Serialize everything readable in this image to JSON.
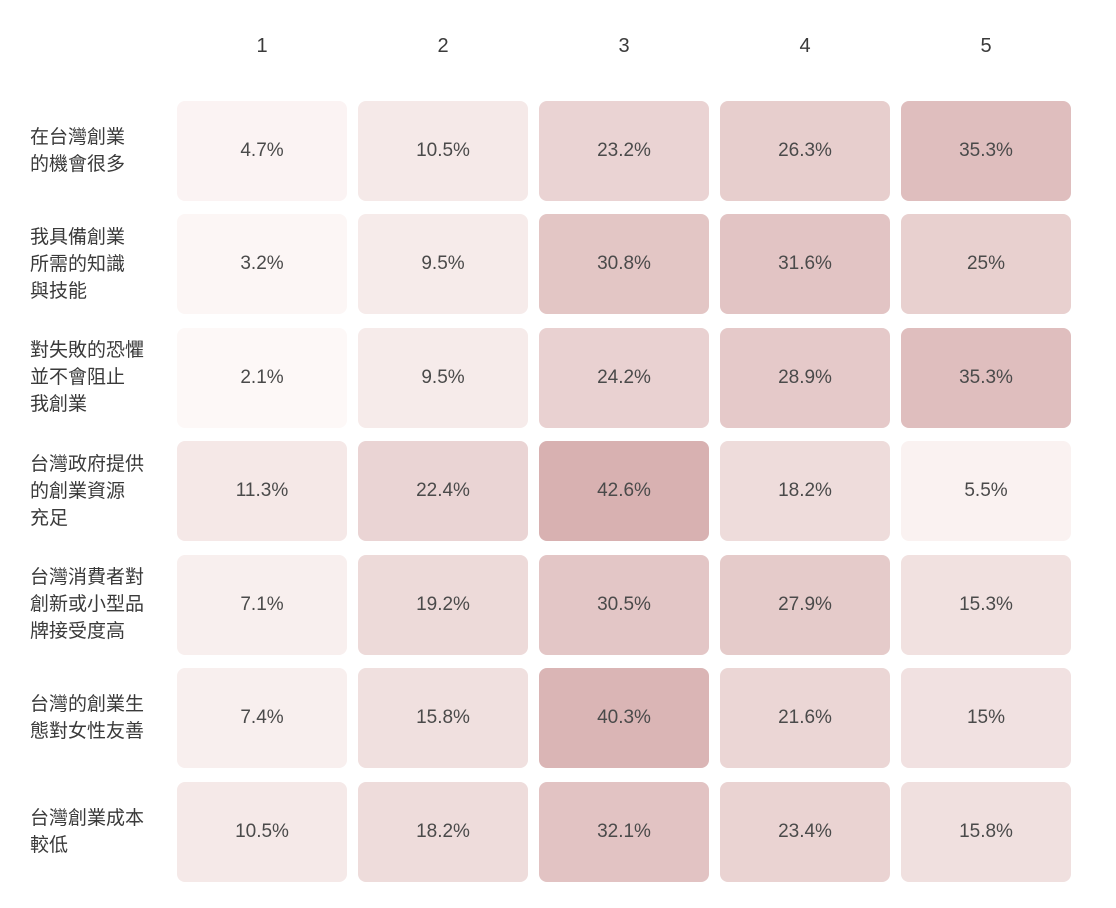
{
  "chart_data": {
    "type": "heatmap",
    "title": "",
    "columns": [
      "1",
      "2",
      "3",
      "4",
      "5"
    ],
    "rows": [
      {
        "label": "在台灣創業\n的機會很多",
        "values": [
          4.7,
          10.5,
          23.2,
          26.3,
          35.3
        ],
        "display": [
          "4.7%",
          "10.5%",
          "23.2%",
          "26.3%",
          "35.3%"
        ]
      },
      {
        "label": "我具備創業\n所需的知識\n與技能",
        "values": [
          3.2,
          9.5,
          30.8,
          31.6,
          25
        ],
        "display": [
          "3.2%",
          "9.5%",
          "30.8%",
          "31.6%",
          "25%"
        ]
      },
      {
        "label": "對失敗的恐懼\n並不會阻止\n我創業",
        "values": [
          2.1,
          9.5,
          24.2,
          28.9,
          35.3
        ],
        "display": [
          "2.1%",
          "9.5%",
          "24.2%",
          "28.9%",
          "35.3%"
        ]
      },
      {
        "label": "台灣政府提供\n的創業資源\n充足",
        "values": [
          11.3,
          22.4,
          42.6,
          18.2,
          5.5
        ],
        "display": [
          "11.3%",
          "22.4%",
          "42.6%",
          "18.2%",
          "5.5%"
        ]
      },
      {
        "label": "台灣消費者對\n創新或小型品\n牌接受度高",
        "values": [
          7.1,
          19.2,
          30.5,
          27.9,
          15.3
        ],
        "display": [
          "7.1%",
          "19.2%",
          "30.5%",
          "27.9%",
          "15.3%"
        ]
      },
      {
        "label": "台灣的創業生\n態對女性友善",
        "values": [
          7.4,
          15.8,
          40.3,
          21.6,
          15
        ],
        "display": [
          "7.4%",
          "15.8%",
          "40.3%",
          "21.6%",
          "15%"
        ]
      },
      {
        "label": "台灣創業成本\n較低",
        "values": [
          10.5,
          18.2,
          32.1,
          23.4,
          15.8
        ],
        "display": [
          "10.5%",
          "18.2%",
          "32.1%",
          "23.4%",
          "15.8%"
        ]
      }
    ],
    "value_format": "percent",
    "legend_position": "none",
    "grid": false,
    "color_scale": {
      "min_value": 2.1,
      "max_value": 42.6,
      "min_color": "#fdf8f7",
      "max_color": "#d8b1b1"
    }
  },
  "colors": {
    "background": "#ffffff",
    "value_text": "#4a4a4a",
    "label_text": "#3a3a3a"
  }
}
